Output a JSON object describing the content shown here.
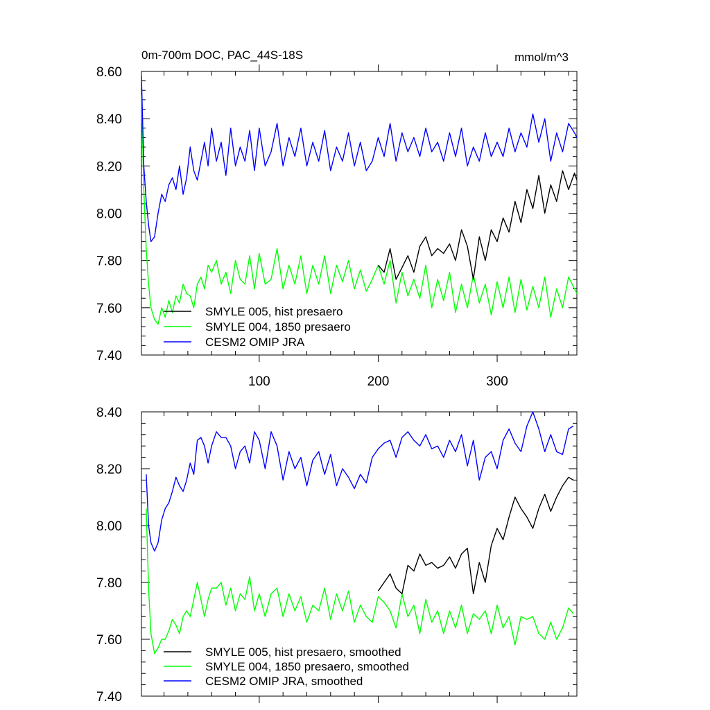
{
  "chart_data": [
    {
      "type": "line",
      "title": "0m-700m DOC, PAC_44S-18S",
      "unit_label": "mmol/m^3",
      "xlim": [
        1,
        367
      ],
      "ylim": [
        7.4,
        8.6
      ],
      "xticks": [
        100,
        200,
        300
      ],
      "xtick_labels": [
        "100",
        "200",
        "300"
      ],
      "yticks": [
        7.4,
        7.6,
        7.8,
        8.0,
        8.2,
        8.4,
        8.6
      ],
      "ytick_labels": [
        "7.40",
        "7.60",
        "7.80",
        "8.00",
        "8.20",
        "8.40",
        "8.60"
      ],
      "legend_position": "bottom-left",
      "series": [
        {
          "name": "SMYLE 005, hist presaero",
          "color": "#000000",
          "x": [
            200,
            205,
            210,
            215,
            220,
            225,
            230,
            235,
            240,
            245,
            250,
            255,
            260,
            265,
            270,
            275,
            280,
            285,
            290,
            295,
            300,
            305,
            310,
            315,
            320,
            325,
            330,
            335,
            340,
            345,
            350,
            355,
            360,
            365,
            367
          ],
          "y": [
            7.78,
            7.75,
            7.85,
            7.72,
            7.77,
            7.82,
            7.75,
            7.86,
            7.9,
            7.82,
            7.85,
            7.83,
            7.87,
            7.8,
            7.93,
            7.86,
            7.72,
            7.9,
            7.8,
            7.93,
            7.88,
            7.98,
            7.92,
            8.05,
            7.96,
            8.1,
            8.02,
            8.16,
            8.0,
            8.12,
            8.05,
            8.18,
            8.1,
            8.17,
            8.14
          ]
        },
        {
          "name": "SMYLE 004, 1850 presaero",
          "color": "#00ff00",
          "x": [
            1,
            3,
            5,
            7,
            9,
            12,
            15,
            18,
            21,
            24,
            27,
            30,
            33,
            36,
            39,
            42,
            45,
            48,
            51,
            54,
            57,
            60,
            64,
            68,
            72,
            76,
            80,
            84,
            88,
            92,
            96,
            100,
            105,
            110,
            115,
            120,
            125,
            130,
            135,
            140,
            145,
            150,
            155,
            160,
            165,
            170,
            175,
            180,
            185,
            190,
            195,
            200,
            205,
            210,
            215,
            220,
            225,
            230,
            235,
            240,
            245,
            250,
            255,
            260,
            265,
            270,
            275,
            280,
            285,
            290,
            295,
            300,
            305,
            310,
            315,
            320,
            325,
            330,
            335,
            340,
            345,
            350,
            355,
            360,
            365,
            367
          ],
          "y": [
            8.5,
            8.1,
            7.85,
            7.7,
            7.6,
            7.55,
            7.53,
            7.6,
            7.56,
            7.63,
            7.58,
            7.65,
            7.62,
            7.7,
            7.66,
            7.65,
            7.6,
            7.7,
            7.73,
            7.68,
            7.78,
            7.75,
            7.8,
            7.7,
            7.75,
            7.66,
            7.8,
            7.72,
            7.7,
            7.82,
            7.68,
            7.83,
            7.7,
            7.72,
            7.85,
            7.68,
            7.78,
            7.7,
            7.82,
            7.66,
            7.78,
            7.7,
            7.82,
            7.66,
            7.78,
            7.71,
            7.8,
            7.68,
            7.76,
            7.67,
            7.72,
            7.78,
            7.7,
            7.8,
            7.62,
            7.75,
            7.65,
            7.72,
            7.64,
            7.78,
            7.6,
            7.72,
            7.63,
            7.75,
            7.58,
            7.7,
            7.6,
            7.74,
            7.62,
            7.7,
            7.57,
            7.71,
            7.6,
            7.73,
            7.58,
            7.72,
            7.59,
            7.69,
            7.6,
            7.73,
            7.56,
            7.68,
            7.6,
            7.73,
            7.68,
            7.66
          ]
        },
        {
          "name": "CESM2 OMIP JRA",
          "color": "#0000ff",
          "x": [
            1,
            3,
            5,
            7,
            9,
            12,
            15,
            18,
            21,
            24,
            27,
            30,
            33,
            36,
            39,
            42,
            45,
            48,
            51,
            54,
            57,
            60,
            64,
            68,
            72,
            76,
            80,
            84,
            88,
            92,
            96,
            100,
            105,
            110,
            115,
            120,
            125,
            130,
            135,
            140,
            145,
            150,
            155,
            160,
            165,
            170,
            175,
            180,
            185,
            190,
            195,
            200,
            205,
            210,
            215,
            220,
            225,
            230,
            235,
            240,
            245,
            250,
            255,
            260,
            265,
            270,
            275,
            280,
            285,
            290,
            295,
            300,
            305,
            310,
            315,
            320,
            325,
            330,
            335,
            340,
            345,
            350,
            355,
            360,
            365,
            367
          ],
          "y": [
            8.58,
            8.2,
            8.05,
            7.95,
            7.88,
            7.9,
            8.0,
            8.08,
            8.05,
            8.12,
            8.15,
            8.1,
            8.2,
            8.08,
            8.15,
            8.28,
            8.18,
            8.14,
            8.22,
            8.3,
            8.2,
            8.36,
            8.22,
            8.3,
            8.16,
            8.36,
            8.2,
            8.28,
            8.22,
            8.35,
            8.18,
            8.36,
            8.2,
            8.26,
            8.38,
            8.2,
            8.32,
            8.24,
            8.36,
            8.2,
            8.3,
            8.22,
            8.35,
            8.18,
            8.28,
            8.22,
            8.34,
            8.2,
            8.3,
            8.18,
            8.22,
            8.32,
            8.24,
            8.38,
            8.22,
            8.34,
            8.26,
            8.32,
            8.24,
            8.36,
            8.26,
            8.3,
            8.22,
            8.34,
            8.24,
            8.36,
            8.2,
            8.28,
            8.22,
            8.34,
            8.24,
            8.3,
            8.24,
            8.36,
            8.26,
            8.34,
            8.28,
            8.42,
            8.3,
            8.4,
            8.22,
            8.34,
            8.26,
            8.38,
            8.34,
            8.32
          ]
        }
      ]
    },
    {
      "type": "line",
      "xlim": [
        1,
        367
      ],
      "ylim": [
        7.4,
        8.4
      ],
      "xticks": [
        100,
        200,
        300
      ],
      "yticks": [
        7.4,
        7.6,
        7.8,
        8.0,
        8.2,
        8.4
      ],
      "ytick_labels": [
        "7.40",
        "7.60",
        "7.80",
        "8.00",
        "8.20",
        "8.40"
      ],
      "legend_position": "bottom-center",
      "series": [
        {
          "name": "SMYLE 005, hist presaero, smoothed",
          "color": "#000000",
          "x": [
            200,
            205,
            210,
            215,
            220,
            225,
            230,
            235,
            240,
            245,
            250,
            255,
            260,
            265,
            270,
            275,
            280,
            285,
            290,
            295,
            300,
            305,
            310,
            315,
            320,
            325,
            330,
            335,
            340,
            345,
            350,
            355,
            360,
            364
          ],
          "y": [
            7.77,
            7.8,
            7.83,
            7.78,
            7.76,
            7.86,
            7.84,
            7.9,
            7.86,
            7.87,
            7.85,
            7.86,
            7.89,
            7.85,
            7.9,
            7.92,
            7.76,
            7.87,
            7.8,
            7.93,
            7.99,
            7.95,
            8.03,
            8.1,
            8.06,
            8.03,
            7.99,
            8.06,
            8.11,
            8.05,
            8.1,
            8.14,
            8.17,
            8.16
          ]
        },
        {
          "name": "SMYLE 004, 1850 presaero, smoothed",
          "color": "#00ff00",
          "x": [
            5,
            7,
            9,
            12,
            15,
            18,
            21,
            24,
            27,
            30,
            33,
            36,
            39,
            42,
            45,
            48,
            51,
            54,
            57,
            60,
            64,
            68,
            72,
            76,
            80,
            84,
            88,
            92,
            96,
            100,
            105,
            110,
            115,
            120,
            125,
            130,
            135,
            140,
            145,
            150,
            155,
            160,
            165,
            170,
            175,
            180,
            185,
            190,
            195,
            200,
            205,
            210,
            215,
            220,
            225,
            230,
            235,
            240,
            245,
            250,
            255,
            260,
            265,
            270,
            275,
            280,
            285,
            290,
            295,
            300,
            305,
            310,
            315,
            320,
            325,
            330,
            335,
            340,
            345,
            350,
            355,
            360,
            364
          ],
          "y": [
            8.06,
            7.78,
            7.62,
            7.55,
            7.57,
            7.6,
            7.6,
            7.63,
            7.67,
            7.65,
            7.62,
            7.68,
            7.7,
            7.68,
            7.74,
            7.8,
            7.74,
            7.68,
            7.74,
            7.78,
            7.78,
            7.8,
            7.72,
            7.78,
            7.7,
            7.76,
            7.74,
            7.82,
            7.7,
            7.76,
            7.68,
            7.76,
            7.78,
            7.68,
            7.76,
            7.7,
            7.75,
            7.66,
            7.72,
            7.7,
            7.78,
            7.67,
            7.76,
            7.7,
            7.77,
            7.66,
            7.72,
            7.68,
            7.66,
            7.75,
            7.73,
            7.7,
            7.64,
            7.76,
            7.68,
            7.72,
            7.62,
            7.74,
            7.66,
            7.7,
            7.62,
            7.7,
            7.64,
            7.72,
            7.62,
            7.69,
            7.67,
            7.7,
            7.62,
            7.72,
            7.64,
            7.68,
            7.58,
            7.68,
            7.67,
            7.68,
            7.62,
            7.6,
            7.66,
            7.6,
            7.64,
            7.71,
            7.69
          ]
        },
        {
          "name": "CESM2 OMIP JRA, smoothed",
          "color": "#0000ff",
          "x": [
            5,
            7,
            9,
            12,
            15,
            18,
            21,
            24,
            27,
            30,
            33,
            36,
            39,
            42,
            45,
            48,
            51,
            54,
            57,
            60,
            64,
            68,
            72,
            76,
            80,
            84,
            88,
            92,
            96,
            100,
            105,
            110,
            115,
            120,
            125,
            130,
            135,
            140,
            145,
            150,
            155,
            160,
            165,
            170,
            175,
            180,
            185,
            190,
            195,
            200,
            205,
            210,
            215,
            220,
            225,
            230,
            235,
            240,
            245,
            250,
            255,
            260,
            265,
            270,
            275,
            280,
            285,
            290,
            295,
            300,
            305,
            310,
            315,
            320,
            325,
            330,
            335,
            340,
            345,
            350,
            355,
            360,
            364
          ],
          "y": [
            8.18,
            8.0,
            7.94,
            7.91,
            7.94,
            8.02,
            8.06,
            8.08,
            8.12,
            8.17,
            8.14,
            8.12,
            8.16,
            8.22,
            8.18,
            8.3,
            8.31,
            8.28,
            8.22,
            8.28,
            8.33,
            8.31,
            8.31,
            8.28,
            8.2,
            8.26,
            8.28,
            8.22,
            8.33,
            8.3,
            8.2,
            8.33,
            8.28,
            8.16,
            8.26,
            8.2,
            8.24,
            8.14,
            8.23,
            8.26,
            8.18,
            8.25,
            8.14,
            8.2,
            8.17,
            8.13,
            8.18,
            8.15,
            8.24,
            8.27,
            8.29,
            8.3,
            8.24,
            8.31,
            8.33,
            8.3,
            8.28,
            8.32,
            8.27,
            8.28,
            8.24,
            8.3,
            8.26,
            8.32,
            8.21,
            8.3,
            8.16,
            8.24,
            8.26,
            8.2,
            8.3,
            8.34,
            8.29,
            8.26,
            8.35,
            8.4,
            8.34,
            8.26,
            8.32,
            8.26,
            8.25,
            8.34,
            8.35
          ]
        }
      ]
    }
  ]
}
